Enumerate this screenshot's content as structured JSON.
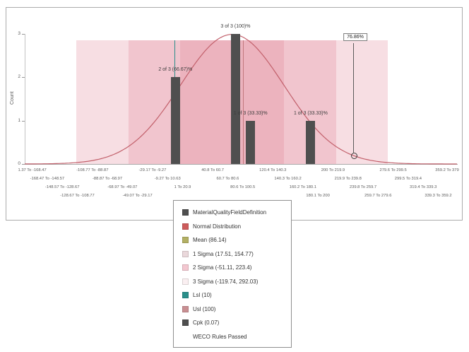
{
  "chart": {
    "y_axis_label": "Count",
    "y_ticks": [
      3,
      2,
      1,
      0
    ],
    "marker_label": "76.86%",
    "x_rows": [
      [
        {
          "col": 0,
          "text": "1.37 To -168.47"
        },
        {
          "col": 1,
          "text": "-108.77 To -88.87"
        },
        {
          "col": 2,
          "text": "-29.17 To -9.27"
        },
        {
          "col": 3,
          "text": "40.8 To 60.7"
        },
        {
          "col": 4,
          "text": "120.4 To 140.3"
        },
        {
          "col": 5,
          "text": "200 To 219.9"
        },
        {
          "col": 6,
          "text": "279.6 To 299.5"
        },
        {
          "col": 7,
          "text": "359.2 To 379"
        }
      ],
      [
        {
          "col": 0,
          "text": "-168.47 To -148.57"
        },
        {
          "col": 1,
          "text": "-88.87 To -68.97"
        },
        {
          "col": 2,
          "text": "-9.27 To 10.63"
        },
        {
          "col": 3,
          "text": "60.7 To 80.6"
        },
        {
          "col": 4,
          "text": "140.3 To 160.2"
        },
        {
          "col": 5,
          "text": "219.9 To 239.8"
        },
        {
          "col": 6,
          "text": "299.5 To 319.4"
        }
      ],
      [
        {
          "col": 0,
          "text": "-148.57 To -128.67"
        },
        {
          "col": 1,
          "text": "-68.97 To -49.07"
        },
        {
          "col": 2,
          "text": "1 To 20.9"
        },
        {
          "col": 3,
          "text": "80.6 To 100.5"
        },
        {
          "col": 4,
          "text": "160.2 To 180.1"
        },
        {
          "col": 5,
          "text": "239.8 To 259.7"
        },
        {
          "col": 6,
          "text": "319.4 To 339.3"
        }
      ],
      [
        {
          "col": 0,
          "text": "-128.67 To -108.77"
        },
        {
          "col": 1,
          "text": "-49.07 To -29.17"
        },
        {
          "col": 4,
          "text": "180.1 To 200"
        },
        {
          "col": 5,
          "text": "259.7 To 279.6"
        },
        {
          "col": 6,
          "text": "339.3 To 359.2"
        }
      ]
    ]
  },
  "legend": {
    "items": [
      {
        "label": "MaterialQualityFieldDefinition",
        "color": "#4f4f4f"
      },
      {
        "label": "Normal Distribution",
        "color": "#cd5c5c"
      },
      {
        "label": "Mean (86.14)",
        "color": "#b3b064"
      },
      {
        "label": "1 Sigma (17.51, 154.77)",
        "color": "#ead8db"
      },
      {
        "label": "2 Sigma (-51.11, 223.4)",
        "color": "#f3c7d0"
      },
      {
        "label": "3 Sigma (-119.74, 292.03)",
        "color": "#faeff1"
      },
      {
        "label": "Lsl (10)",
        "color": "#2a8f8a"
      },
      {
        "label": "Usl (100)",
        "color": "#c98f92"
      },
      {
        "label": "Cpk (0.07)",
        "color": "#4f4f4f"
      }
    ],
    "footer": "WECO Rules Passed"
  },
  "chart_data": {
    "type": "bar",
    "title": "",
    "xlabel": "",
    "ylabel": "Count",
    "ylim": [
      0,
      3
    ],
    "x_range": [
      -188.37,
      379
    ],
    "bin_width": 19.9,
    "series_name": "MaterialQualityFieldDefinition",
    "bars": [
      {
        "bin": "1 To 20.9",
        "from": 1,
        "to": 20.9,
        "count": 2,
        "annotation": "2 of 3 (66.67)%"
      },
      {
        "bin": "80.6 To 100.5",
        "from": 80.6,
        "to": 100.5,
        "count": 3,
        "annotation": "3 of 3 (100)%"
      },
      {
        "bin": "100.5 To 120.4",
        "from": 100.5,
        "to": 120.4,
        "count": 1,
        "annotation": "1 of 3 (33.33)%"
      },
      {
        "bin": "180.1 To 200",
        "from": 180.1,
        "to": 200,
        "count": 1,
        "annotation": "1 of 3 (33.33)%"
      }
    ],
    "normal_distribution": {
      "mean": 86.14,
      "sigma": 68.63
    },
    "sigma_bands": {
      "one": [
        17.51,
        154.77
      ],
      "two": [
        -51.11,
        223.4
      ],
      "three": [
        -119.74,
        292.03
      ]
    },
    "lsl": 10,
    "usl": 100,
    "cpk": 0.07,
    "marker_percent": "76.86%",
    "legend_position": "bottom",
    "grid": false
  }
}
